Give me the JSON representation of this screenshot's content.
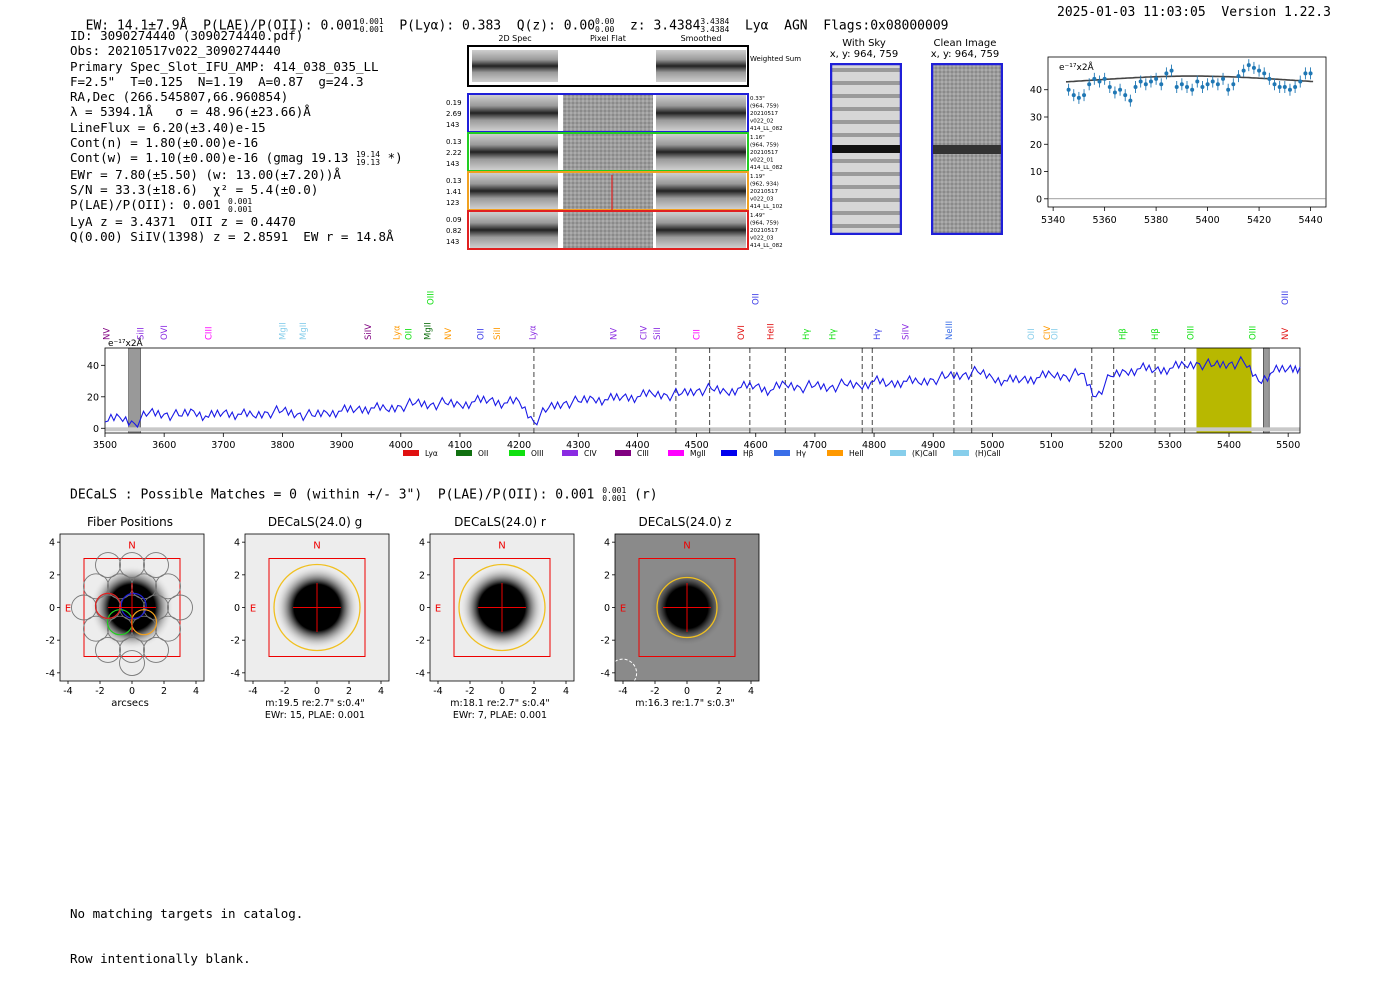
{
  "header": {
    "ew": "EW: 14.1±7.9Å",
    "plae_label": "P(LAE)/P(OII): 0.001",
    "plae_hi": "0.001",
    "plae_lo": "0.001",
    "plya": "P(Lyα): 0.383",
    "qz_label": "Q(z): 0.00",
    "qz_hi": "0.00",
    "qz_lo": "0.00",
    "z_label": "z: 3.4384",
    "z_hi": "3.4384",
    "z_lo": "3.4384",
    "class": "Lyα  AGN",
    "flags": "Flags:0x08000009",
    "timestamp": "2025-01-03 11:03:05",
    "version": "Version 1.22.3"
  },
  "info": {
    "id": "ID: 3090274440 (3090274440.pdf)",
    "obs": "Obs: 20210517v022_3090274440",
    "primary": "Primary Spec_Slot_IFU_AMP: 414_038_035_LL",
    "fit": "F=2.5\"  T=0.125  N=1.19  A=0.87  g=24.3",
    "radec": "RA,Dec (266.545807,66.960854)",
    "lambda": "λ = 5394.1Å   σ = 48.96(±23.66)Å",
    "lineflux": "LineFlux = 6.20(±3.40)e-15",
    "contn": "Cont(n) = 1.80(±0.00)e-16",
    "contw": "Cont(w) = 1.10(±0.00)e-16 (gmag 19.13",
    "contw_hi": "19.14",
    "contw_lo": "19.13",
    "contw_end": " *)",
    "ewr": "EWr = 7.80(±5.50) (w: 13.00(±7.20))Å",
    "sn": "S/N = 33.3(±18.6)  χ² = 5.4(±0.0)",
    "plae": "P(LAE)/P(OII): 0.001",
    "plae_hi": "0.001",
    "plae_lo": "0.001",
    "lya": "LyA z = 3.4371  OII z = 0.4470",
    "q": "Q(0.00) SiIV(1398) z = 2.8591  EW r = 14.8Å"
  },
  "cutouts": {
    "col_headers": [
      "2D Spec",
      "Pixel Flat",
      "Smoothed"
    ],
    "weighted": "Weighted Sum",
    "rows": [
      {
        "vals": [
          "0.19",
          "2.69",
          "143"
        ],
        "meta": [
          "0.33\"",
          "(964, 759)",
          "20210517",
          "v022_02",
          "414_LL_082"
        ],
        "color": "#1f1fd8"
      },
      {
        "vals": [
          "0.13",
          "2.22",
          "143"
        ],
        "meta": [
          "1.16\"",
          "(964, 759)",
          "20210517",
          "v022_01",
          "414_LL_082"
        ],
        "color": "#22cc22"
      },
      {
        "vals": [
          "0.13",
          "1.41",
          "123"
        ],
        "meta": [
          "1.19\"",
          "(962, 934)",
          "20210517",
          "v022_03",
          "414_LL_102"
        ],
        "color": "#f0a020"
      },
      {
        "vals": [
          "0.09",
          "0.82",
          "143"
        ],
        "meta": [
          "1.49\"",
          "(964, 759)",
          "20210517",
          "v022_03",
          "414_LL_082"
        ],
        "color": "#e02020"
      }
    ],
    "sky_title": "With Sky",
    "sky_xy": "x, y: 964, 759",
    "clean_title": "Clean Image",
    "clean_xy": "x, y: 964, 759"
  },
  "zoom_chart": {
    "type": "scatter",
    "ylabel_unit": "e⁻¹⁷x2Å",
    "xlim": [
      5338,
      5446
    ],
    "ylim": [
      -3,
      52
    ],
    "xticks": [
      5340,
      5360,
      5380,
      5400,
      5420,
      5440
    ],
    "yticks": [
      0,
      10,
      20,
      30,
      40
    ],
    "x": [
      5346,
      5348,
      5350,
      5352,
      5354,
      5356,
      5358,
      5360,
      5362,
      5364,
      5366,
      5368,
      5370,
      5372,
      5374,
      5376,
      5378,
      5380,
      5382,
      5384,
      5386,
      5388,
      5390,
      5392,
      5394,
      5396,
      5398,
      5400,
      5402,
      5404,
      5406,
      5408,
      5410,
      5412,
      5414,
      5416,
      5418,
      5420,
      5422,
      5424,
      5426,
      5428,
      5430,
      5432,
      5434,
      5436,
      5438,
      5440
    ],
    "y": [
      40,
      38,
      37,
      38,
      42,
      44,
      43,
      44,
      41,
      39,
      40,
      38,
      36,
      41,
      43,
      42,
      43,
      44,
      42,
      46,
      47,
      41,
      42,
      41,
      40,
      43,
      41,
      42,
      43,
      42,
      44,
      40,
      42,
      45,
      47,
      49,
      48,
      47,
      46,
      44,
      42,
      41,
      41,
      40,
      41,
      43,
      46,
      46
    ],
    "fit_color": "#444444",
    "point_color": "#1f77b4"
  },
  "spectrum": {
    "type": "line",
    "ylabel_unit": "e⁻¹⁷x2Å",
    "xlim": [
      3500,
      5520
    ],
    "ylim": [
      -3,
      51
    ],
    "xticks": [
      3500,
      3600,
      3700,
      3800,
      3900,
      4000,
      4100,
      4200,
      4300,
      4400,
      4500,
      4600,
      4700,
      4800,
      4900,
      5000,
      5100,
      5200,
      5300,
      5400,
      5500
    ],
    "yticks": [
      0,
      20,
      40
    ],
    "line_color": "#1a1ae6",
    "x": [
      3500,
      3525,
      3550,
      3575,
      3600,
      3625,
      3650,
      3675,
      3700,
      3725,
      3750,
      3775,
      3800,
      3825,
      3850,
      3875,
      3900,
      3925,
      3950,
      3975,
      4000,
      4025,
      4050,
      4075,
      4100,
      4125,
      4150,
      4175,
      4200,
      4225,
      4250,
      4275,
      4300,
      4325,
      4350,
      4375,
      4400,
      4425,
      4450,
      4475,
      4500,
      4525,
      4550,
      4575,
      4600,
      4625,
      4650,
      4675,
      4700,
      4725,
      4750,
      4775,
      4800,
      4825,
      4850,
      4875,
      4900,
      4925,
      4950,
      4975,
      5000,
      5025,
      5050,
      5075,
      5100,
      5125,
      5150,
      5175,
      5200,
      5225,
      5250,
      5275,
      5300,
      5325,
      5350,
      5375,
      5400,
      5425,
      5450,
      5475,
      5500,
      5520
    ],
    "y": [
      4,
      7,
      3,
      10,
      9,
      8,
      11,
      7,
      10,
      9,
      8,
      10,
      11,
      9,
      8,
      10,
      11,
      12,
      13,
      12,
      14,
      16,
      15,
      16,
      15,
      17,
      18,
      16,
      17,
      4,
      13,
      16,
      17,
      19,
      18,
      20,
      20,
      22,
      21,
      22,
      24,
      25,
      23,
      26,
      27,
      24,
      28,
      26,
      27,
      26,
      28,
      27,
      30,
      28,
      30,
      29,
      31,
      33,
      34,
      36,
      32,
      30,
      31,
      32,
      34,
      33,
      35,
      20,
      33,
      36,
      38,
      37,
      38,
      40,
      41,
      40,
      41,
      42,
      30,
      36,
      38,
      39
    ],
    "dashed_lines": [
      4225,
      4465,
      4522,
      4590,
      4650,
      4780,
      4797,
      4935,
      4965,
      5168,
      5205,
      5275,
      5325
    ],
    "highlight": [
      5345,
      5438
    ],
    "highlight_color": "#b8b800",
    "masked": [
      [
        3540,
        3560
      ],
      [
        5458,
        5468
      ]
    ],
    "legend": [
      {
        "label": "Lyα",
        "color": "#e01010"
      },
      {
        "label": "OII",
        "color": "#107010"
      },
      {
        "label": "OIII",
        "color": "#10e010"
      },
      {
        "label": "CIV",
        "color": "#8a2be2"
      },
      {
        "label": "CIII",
        "color": "#800080"
      },
      {
        "label": "MgII",
        "color": "#ff00ff"
      },
      {
        "label": "Hβ",
        "color": "#0000ee"
      },
      {
        "label": "Hγ",
        "color": "#3a6ee8"
      },
      {
        "label": "HeII",
        "color": "#ff9900"
      },
      {
        "label": "(K)CaII",
        "color": "#87ceeb"
      },
      {
        "label": "(H)CaII",
        "color": "#87ceeb"
      }
    ],
    "line_ids": [
      {
        "label": "NV",
        "x": 3508,
        "color": "#800080",
        "row": 1
      },
      {
        "label": "SiII",
        "x": 3565,
        "color": "#8a2be2",
        "row": 1
      },
      {
        "label": "OVI",
        "x": 3605,
        "color": "#8a2be2",
        "row": 1
      },
      {
        "label": "CIII",
        "x": 3680,
        "color": "#ff00ff",
        "row": 1
      },
      {
        "label": "MgII",
        "x": 3805,
        "color": "#87ceeb",
        "row": 1
      },
      {
        "label": "MgII",
        "x": 3840,
        "color": "#87ceeb",
        "row": 1
      },
      {
        "label": "SiIV",
        "x": 3950,
        "color": "#800080",
        "row": 1
      },
      {
        "label": "Lyα",
        "x": 3998,
        "color": "#ff9900",
        "row": 1
      },
      {
        "label": "OII",
        "x": 4018,
        "color": "#10e010",
        "row": 1
      },
      {
        "label": "MgII",
        "x": 4050,
        "color": "#107010",
        "row": 1
      },
      {
        "label": "OIII",
        "x": 4055,
        "color": "#10e010",
        "row": 0
      },
      {
        "label": "NV",
        "x": 4085,
        "color": "#ff9900",
        "row": 1
      },
      {
        "label": "OII",
        "x": 4140,
        "color": "#3a3ae8",
        "row": 1
      },
      {
        "label": "SiII",
        "x": 4168,
        "color": "#ff9900",
        "row": 1
      },
      {
        "label": "Lyα",
        "x": 4228,
        "color": "#8a2be2",
        "row": 1
      },
      {
        "label": "NV",
        "x": 4365,
        "color": "#8a2be2",
        "row": 1
      },
      {
        "label": "CIV",
        "x": 4415,
        "color": "#8a2be2",
        "row": 1
      },
      {
        "label": "SiII",
        "x": 4438,
        "color": "#8a2be2",
        "row": 1
      },
      {
        "label": "CII",
        "x": 4505,
        "color": "#ff00ff",
        "row": 1
      },
      {
        "label": "OVI",
        "x": 4580,
        "color": "#e01010",
        "row": 1
      },
      {
        "label": "OII",
        "x": 4605,
        "color": "#3a3ae8",
        "row": 0
      },
      {
        "label": "HeII",
        "x": 4630,
        "color": "#e01010",
        "row": 1
      },
      {
        "label": "Hγ",
        "x": 4690,
        "color": "#10e010",
        "row": 1
      },
      {
        "label": "Hγ",
        "x": 4735,
        "color": "#10e010",
        "row": 1
      },
      {
        "label": "Hγ",
        "x": 4810,
        "color": "#3a3ae8",
        "row": 1
      },
      {
        "label": "SiIV",
        "x": 4858,
        "color": "#8a2be2",
        "row": 1
      },
      {
        "label": "NeIII",
        "x": 4932,
        "color": "#3a6ee8",
        "row": 1
      },
      {
        "label": "OII",
        "x": 5070,
        "color": "#87ceeb",
        "row": 1
      },
      {
        "label": "CIV",
        "x": 5097,
        "color": "#ff9900",
        "row": 1
      },
      {
        "label": "OII",
        "x": 5110,
        "color": "#87ceeb",
        "row": 1
      },
      {
        "label": "Hβ",
        "x": 5225,
        "color": "#10e010",
        "row": 1
      },
      {
        "label": "Hβ",
        "x": 5280,
        "color": "#10e010",
        "row": 1
      },
      {
        "label": "OIII",
        "x": 5340,
        "color": "#10e010",
        "row": 1
      },
      {
        "label": "OIII",
        "x": 5445,
        "color": "#10e010",
        "row": 1
      },
      {
        "label": "NV",
        "x": 5500,
        "color": "#e01010",
        "row": 1
      },
      {
        "label": "OIII",
        "x": 5500,
        "color": "#3a3ae8",
        "row": 0
      }
    ]
  },
  "decals": {
    "summary": "DECaLS : Possible Matches = 0 (within +/- 3\")  P(LAE)/P(OII): 0.001",
    "summary_hi": "0.001",
    "summary_lo": "0.001",
    "summary_end": "(r)",
    "ticks": [
      -4,
      -2,
      0,
      2,
      4
    ],
    "north": "N",
    "east": "E",
    "panels": [
      {
        "title": "Fiber Positions",
        "xlabel": "arcsecs",
        "cap1": "",
        "cap2": ""
      },
      {
        "title": "DECaLS(24.0) g",
        "xlabel": "",
        "cap1": "m:19.5  re:2.7\"  s:0.4\"",
        "cap2": "EWr: 15, PLAE: 0.001"
      },
      {
        "title": "DECaLS(24.0) r",
        "xlabel": "",
        "cap1": "m:18.1  re:2.7\"  s:0.4\"",
        "cap2": "EWr: 7, PLAE: 0.001"
      },
      {
        "title": "DECaLS(24.0) z",
        "xlabel": "",
        "cap1": "m:16.3  re:1.7\"  s:0.3\"",
        "cap2": ""
      }
    ]
  },
  "footer": {
    "line1": "No matching targets in catalog.",
    "line2": "Row intentionally blank."
  }
}
